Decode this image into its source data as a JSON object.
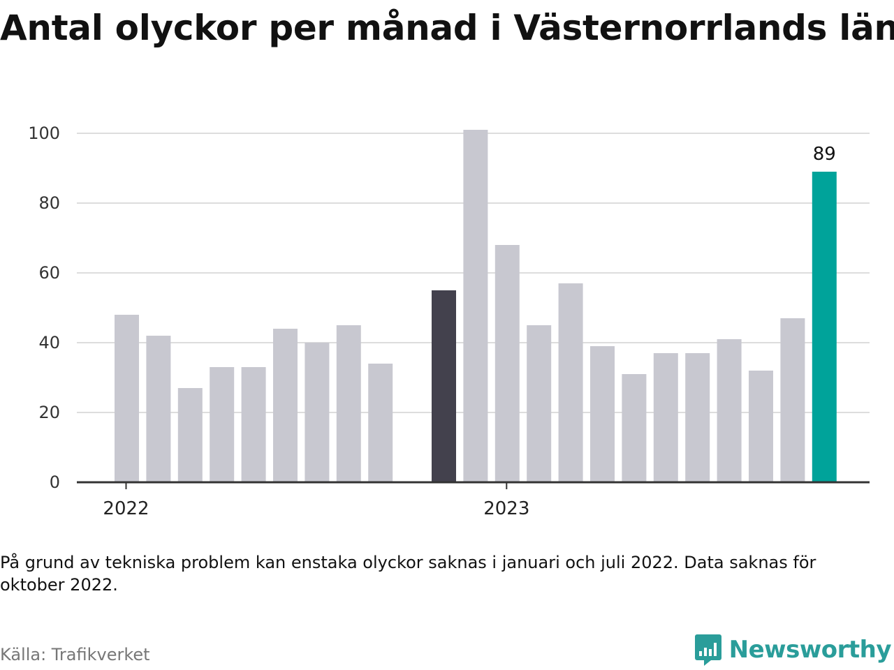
{
  "title": "Antal olyckor per månad i Västernorrlands län",
  "note": "På grund av tekniska problem kan enstaka olyckor saknas i januari och juli 2022. Data saknas för oktober 2022.",
  "source": "Källa: Trafikverket",
  "brand": "Newsworthy",
  "colors": {
    "default_bar": "#c8c8d0",
    "highlight_first": "#43414d",
    "highlight_last": "#00a39a",
    "grid": "#dddddd",
    "axis": "#333333",
    "brand": "#2a9d9a"
  },
  "chart_data": {
    "type": "bar",
    "categories": [
      "2022-01",
      "2022-02",
      "2022-03",
      "2022-04",
      "2022-05",
      "2022-06",
      "2022-07",
      "2022-08",
      "2022-09",
      "2022-10",
      "2022-11",
      "2022-12",
      "2023-01",
      "2023-02",
      "2023-03",
      "2023-04",
      "2023-05",
      "2023-06",
      "2023-07",
      "2023-08",
      "2023-09",
      "2023-10",
      "2023-11",
      "2023-12"
    ],
    "values": [
      48,
      42,
      27,
      33,
      33,
      44,
      40,
      45,
      34,
      null,
      55,
      101,
      68,
      45,
      57,
      39,
      31,
      37,
      37,
      41,
      32,
      47,
      89,
      null
    ],
    "x_tick_labels": [
      "2022",
      "2023"
    ],
    "y_ticks": [
      0,
      20,
      40,
      60,
      80,
      100
    ],
    "ylim": [
      0,
      101
    ],
    "grid": true,
    "highlighted": [
      {
        "category": "2022-11",
        "color": "#43414d"
      },
      {
        "category": "2023-11",
        "color": "#00a39a"
      }
    ],
    "data_labels": [
      {
        "category": "2023-11",
        "text": "89"
      }
    ]
  }
}
